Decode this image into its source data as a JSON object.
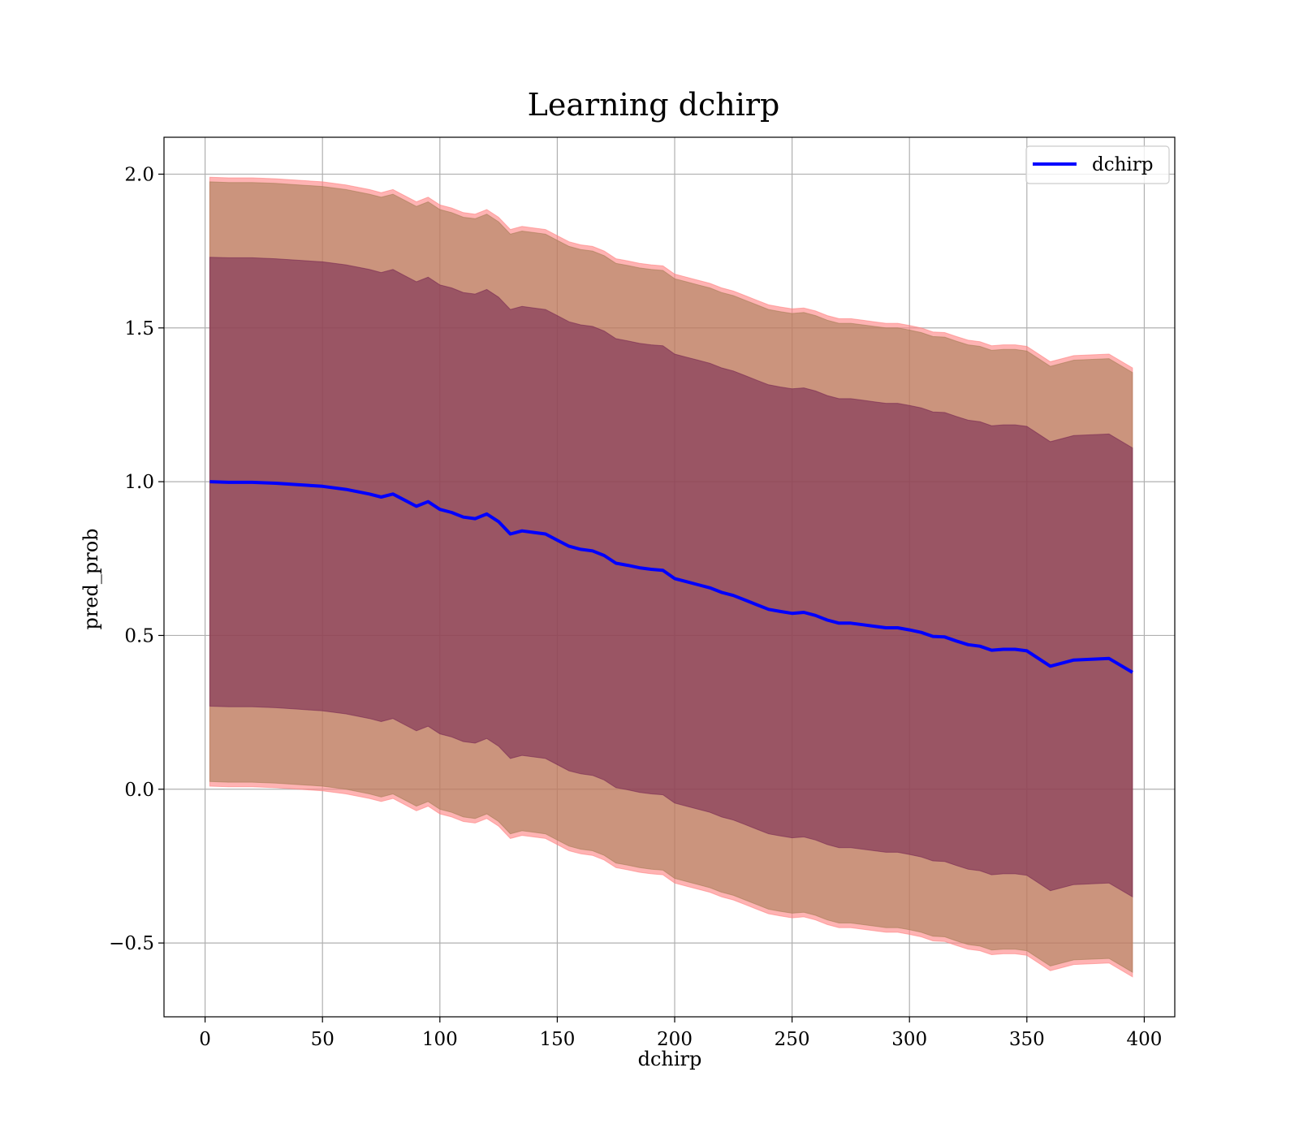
{
  "chart_data": {
    "type": "area",
    "title": "Learning dchirp",
    "xlabel": "dchirp",
    "ylabel": "pred_prob",
    "xlim": [
      -17.5,
      413
    ],
    "ylim": [
      -0.74,
      2.12
    ],
    "xticks": [
      0,
      50,
      100,
      150,
      200,
      250,
      300,
      350,
      400
    ],
    "xtick_labels": [
      "0",
      "50",
      "100",
      "150",
      "200",
      "250",
      "300",
      "350",
      "400"
    ],
    "yticks": [
      -0.5,
      0.0,
      0.5,
      1.0,
      1.5,
      2.0
    ],
    "ytick_labels": [
      "−0.5",
      "0.0",
      "0.5",
      "1.0",
      "1.5",
      "2.0"
    ],
    "grid": true,
    "legend_position": "top-right",
    "x": [
      2,
      10,
      20,
      30,
      40,
      50,
      60,
      70,
      75,
      80,
      85,
      90,
      95,
      100,
      105,
      110,
      115,
      120,
      125,
      130,
      135,
      140,
      145,
      150,
      155,
      160,
      165,
      170,
      175,
      180,
      185,
      190,
      195,
      200,
      205,
      210,
      215,
      220,
      225,
      230,
      235,
      240,
      245,
      250,
      255,
      260,
      265,
      270,
      275,
      280,
      285,
      290,
      295,
      300,
      305,
      310,
      315,
      320,
      325,
      330,
      335,
      340,
      345,
      350,
      360,
      370,
      385,
      395
    ],
    "series": [
      {
        "name": "dchirp",
        "color": "#0000ff",
        "values": [
          1.0,
          0.998,
          0.998,
          0.995,
          0.99,
          0.985,
          0.975,
          0.96,
          0.95,
          0.96,
          0.94,
          0.92,
          0.935,
          0.91,
          0.9,
          0.885,
          0.88,
          0.895,
          0.87,
          0.83,
          0.84,
          0.835,
          0.83,
          0.81,
          0.79,
          0.78,
          0.775,
          0.76,
          0.735,
          0.728,
          0.72,
          0.715,
          0.712,
          0.685,
          0.675,
          0.665,
          0.655,
          0.64,
          0.63,
          0.615,
          0.6,
          0.585,
          0.578,
          0.572,
          0.575,
          0.565,
          0.55,
          0.54,
          0.54,
          0.535,
          0.53,
          0.525,
          0.525,
          0.518,
          0.51,
          0.497,
          0.495,
          0.482,
          0.47,
          0.465,
          0.452,
          0.455,
          0.455,
          0.45,
          0.4,
          0.42,
          0.425,
          0.38
        ]
      }
    ],
    "bands": [
      {
        "fill_color": "#ff8080",
        "fill_opacity": 0.6,
        "offset": 0.99
      },
      {
        "fill_color": "#a07a50",
        "fill_opacity": 0.55,
        "offset": 0.975
      },
      {
        "fill_color": "#732050",
        "fill_opacity": 0.55,
        "offset": 0.73
      }
    ],
    "legend": [
      {
        "label": "dchirp",
        "color": "#0000ff"
      }
    ]
  }
}
